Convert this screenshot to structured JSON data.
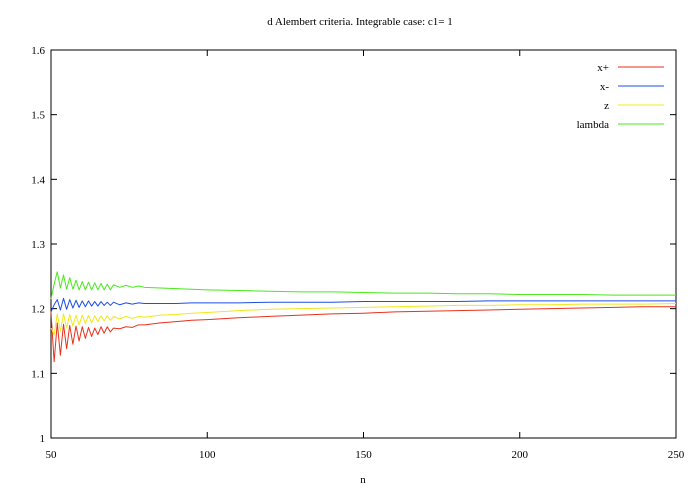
{
  "chart_data": {
    "type": "line",
    "title": "d Alembert criteria. Integrable case: c1= 1",
    "xlabel": "n",
    "ylabel": "",
    "xlim": [
      50,
      250
    ],
    "ylim": [
      1.0,
      1.6
    ],
    "xticks": [
      50,
      100,
      150,
      200,
      250
    ],
    "yticks": [
      1,
      1.1,
      1.2,
      1.3,
      1.4,
      1.5,
      1.6
    ],
    "xtick_labels": [
      "50",
      "100",
      "150",
      "200",
      "250"
    ],
    "ytick_labels": [
      "1",
      "1.1",
      "1.2",
      "1.3",
      "1.4",
      "1.5",
      "1.6"
    ],
    "grid": false,
    "legend_position": "top-right",
    "series": [
      {
        "name": "x+",
        "color": "#e8321c",
        "x": [
          50,
          51,
          52,
          53,
          54,
          55,
          56,
          57,
          58,
          59,
          60,
          61,
          62,
          63,
          64,
          65,
          66,
          67,
          68,
          69,
          70,
          72,
          74,
          76,
          78,
          80,
          85,
          90,
          95,
          100,
          110,
          120,
          130,
          140,
          150,
          160,
          170,
          180,
          190,
          200,
          210,
          220,
          230,
          240,
          250
        ],
        "y": [
          1.195,
          1.118,
          1.178,
          1.128,
          1.176,
          1.138,
          1.174,
          1.145,
          1.173,
          1.15,
          1.172,
          1.154,
          1.171,
          1.157,
          1.17,
          1.16,
          1.172,
          1.162,
          1.172,
          1.164,
          1.17,
          1.169,
          1.172,
          1.171,
          1.175,
          1.175,
          1.178,
          1.18,
          1.182,
          1.183,
          1.186,
          1.188,
          1.19,
          1.192,
          1.193,
          1.195,
          1.196,
          1.197,
          1.198,
          1.199,
          1.2,
          1.201,
          1.202,
          1.203,
          1.203
        ]
      },
      {
        "name": "x-",
        "color": "#1c4ee8",
        "x": [
          50,
          51,
          52,
          53,
          54,
          55,
          56,
          57,
          58,
          59,
          60,
          61,
          62,
          63,
          64,
          65,
          66,
          67,
          68,
          69,
          70,
          72,
          74,
          76,
          78,
          80,
          85,
          90,
          95,
          100,
          110,
          120,
          130,
          140,
          150,
          160,
          170,
          180,
          190,
          200,
          210,
          220,
          230,
          240,
          250
        ],
        "y": [
          1.195,
          1.206,
          1.214,
          1.198,
          1.216,
          1.199,
          1.214,
          1.201,
          1.213,
          1.202,
          1.212,
          1.203,
          1.212,
          1.204,
          1.211,
          1.204,
          1.211,
          1.205,
          1.21,
          1.205,
          1.21,
          1.206,
          1.209,
          1.207,
          1.209,
          1.208,
          1.208,
          1.208,
          1.209,
          1.209,
          1.209,
          1.21,
          1.21,
          1.21,
          1.211,
          1.211,
          1.211,
          1.211,
          1.212,
          1.212,
          1.212,
          1.212,
          1.212,
          1.212,
          1.212
        ]
      },
      {
        "name": "z",
        "color": "#f0e81c",
        "x": [
          50,
          51,
          52,
          53,
          54,
          55,
          56,
          57,
          58,
          59,
          60,
          61,
          62,
          63,
          64,
          65,
          66,
          67,
          68,
          69,
          70,
          72,
          74,
          76,
          78,
          80,
          85,
          90,
          95,
          100,
          110,
          120,
          130,
          140,
          150,
          160,
          170,
          180,
          190,
          200,
          210,
          220,
          230,
          240,
          250
        ],
        "y": [
          1.17,
          1.16,
          1.192,
          1.165,
          1.192,
          1.17,
          1.191,
          1.173,
          1.19,
          1.175,
          1.19,
          1.177,
          1.19,
          1.178,
          1.189,
          1.18,
          1.189,
          1.181,
          1.189,
          1.182,
          1.188,
          1.184,
          1.188,
          1.185,
          1.188,
          1.187,
          1.19,
          1.191,
          1.193,
          1.194,
          1.197,
          1.199,
          1.2,
          1.201,
          1.202,
          1.203,
          1.204,
          1.205,
          1.205,
          1.206,
          1.206,
          1.207,
          1.207,
          1.207,
          1.208
        ]
      },
      {
        "name": "lambda",
        "color": "#4ae81c",
        "x": [
          50,
          51,
          52,
          53,
          54,
          55,
          56,
          57,
          58,
          59,
          60,
          61,
          62,
          63,
          64,
          65,
          66,
          67,
          68,
          69,
          70,
          72,
          74,
          76,
          78,
          80,
          85,
          90,
          95,
          100,
          110,
          120,
          130,
          140,
          150,
          160,
          170,
          180,
          190,
          200,
          210,
          220,
          230,
          240,
          250
        ],
        "y": [
          1.215,
          1.238,
          1.257,
          1.232,
          1.252,
          1.23,
          1.248,
          1.23,
          1.244,
          1.229,
          1.242,
          1.229,
          1.241,
          1.229,
          1.24,
          1.229,
          1.239,
          1.229,
          1.238,
          1.229,
          1.237,
          1.233,
          1.236,
          1.233,
          1.235,
          1.233,
          1.232,
          1.231,
          1.23,
          1.229,
          1.228,
          1.227,
          1.226,
          1.226,
          1.225,
          1.224,
          1.224,
          1.223,
          1.223,
          1.222,
          1.222,
          1.222,
          1.221,
          1.221,
          1.221
        ]
      }
    ]
  }
}
